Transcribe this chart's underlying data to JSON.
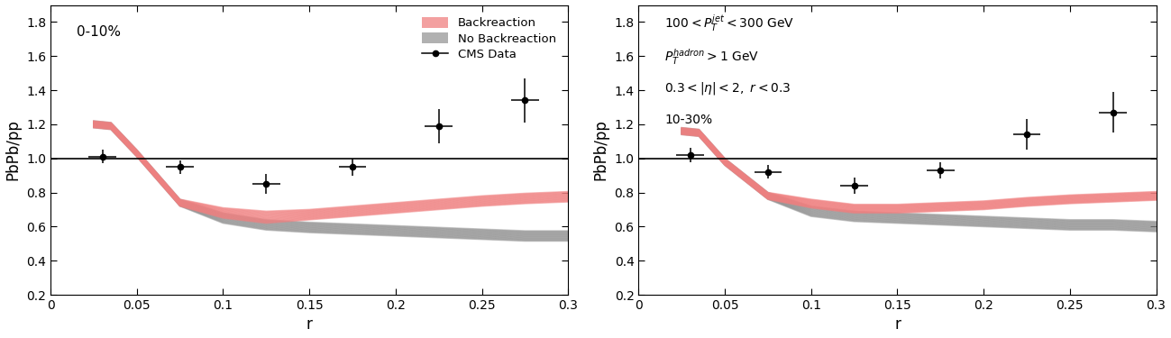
{
  "r_points": [
    0.03,
    0.075,
    0.125,
    0.175,
    0.225,
    0.275
  ],
  "cms_left_y": [
    1.01,
    0.95,
    0.85,
    0.95,
    1.19,
    1.34
  ],
  "cms_left_yerr": [
    0.04,
    0.04,
    0.06,
    0.05,
    0.1,
    0.13
  ],
  "cms_right_y": [
    1.02,
    0.92,
    0.84,
    0.93,
    1.14,
    1.27
  ],
  "cms_right_yerr": [
    0.04,
    0.04,
    0.05,
    0.05,
    0.09,
    0.12
  ],
  "band_r": [
    0.025,
    0.035,
    0.05,
    0.075,
    0.1,
    0.125,
    0.15,
    0.175,
    0.2,
    0.225,
    0.25,
    0.275,
    0.3
  ],
  "back_left_center": [
    1.2,
    1.19,
    1.03,
    0.74,
    0.68,
    0.655,
    0.67,
    0.69,
    0.71,
    0.73,
    0.75,
    0.765,
    0.775
  ],
  "back_left_half": [
    0.02,
    0.02,
    0.02,
    0.02,
    0.03,
    0.035,
    0.03,
    0.03,
    0.03,
    0.03,
    0.03,
    0.03,
    0.03
  ],
  "noback_left_center": [
    1.2,
    1.19,
    1.03,
    0.74,
    0.65,
    0.61,
    0.595,
    0.585,
    0.575,
    0.565,
    0.555,
    0.545,
    0.545
  ],
  "noback_left_half": [
    0.02,
    0.02,
    0.02,
    0.02,
    0.03,
    0.03,
    0.03,
    0.03,
    0.03,
    0.03,
    0.03,
    0.03,
    0.03
  ],
  "back_right_center": [
    1.16,
    1.15,
    0.98,
    0.78,
    0.735,
    0.705,
    0.705,
    0.715,
    0.725,
    0.745,
    0.76,
    0.77,
    0.78
  ],
  "back_right_half": [
    0.02,
    0.02,
    0.02,
    0.02,
    0.025,
    0.025,
    0.025,
    0.025,
    0.025,
    0.025,
    0.025,
    0.025,
    0.025
  ],
  "noback_right_center": [
    1.16,
    1.15,
    0.98,
    0.78,
    0.69,
    0.66,
    0.65,
    0.64,
    0.63,
    0.62,
    0.61,
    0.61,
    0.6
  ],
  "noback_right_half": [
    0.02,
    0.02,
    0.02,
    0.02,
    0.03,
    0.03,
    0.03,
    0.03,
    0.03,
    0.03,
    0.03,
    0.03,
    0.03
  ],
  "back_color": "#f08080",
  "noback_color": "#888888",
  "data_color": "#000000",
  "label_left": "0-10%",
  "annotation_line1": "$100 < P_T^{jet} < 300$ GeV",
  "annotation_line2": "$P_T^{hadron} > 1$ GeV",
  "annotation_line3": "$0.3 < |\\eta| < 2,\\ r < 0.3$",
  "annotation_line4": "10-30%",
  "ylabel": "PbPb/pp",
  "xlabel": "r",
  "ylim": [
    0.2,
    1.9
  ],
  "xlim": [
    0.0,
    0.3
  ],
  "num_lines": 18
}
